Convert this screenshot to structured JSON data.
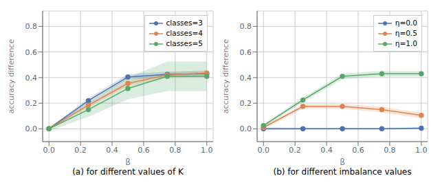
{
  "chart_data": [
    {
      "type": "line",
      "title": "(a) for different values of K",
      "xlabel": "β",
      "ylabel": "accuracy difference",
      "x": [
        0.0,
        0.25,
        0.5,
        0.75,
        1.0
      ],
      "series": [
        {
          "name": "classes=3",
          "color": "#4C72B0",
          "values": [
            0.0,
            0.22,
            0.405,
            0.425,
            0.43
          ],
          "std": [
            0.008,
            0.018,
            0.022,
            0.022,
            0.022
          ]
        },
        {
          "name": "classes=4",
          "color": "#DD8452",
          "values": [
            0.0,
            0.185,
            0.355,
            0.42,
            0.435
          ],
          "std": [
            0.008,
            0.018,
            0.022,
            0.022,
            0.022
          ]
        },
        {
          "name": "classes=5",
          "color": "#55A868",
          "values": [
            0.0,
            0.15,
            0.315,
            0.41,
            0.41
          ],
          "std": [
            0.018,
            0.055,
            0.085,
            0.115,
            0.115
          ]
        }
      ],
      "xlim": [
        -0.04,
        1.04
      ],
      "xticks": [
        {
          "value": 0.0,
          "label": "0.0"
        },
        {
          "value": 0.2,
          "label": "0.2"
        },
        {
          "value": 0.4,
          "label": "0.4"
        },
        {
          "value": 0.6,
          "label": "0.6"
        },
        {
          "value": 0.8,
          "label": "0.8"
        },
        {
          "value": 1.0,
          "label": "1.0"
        }
      ],
      "ylim": [
        -0.1,
        0.92
      ],
      "yticks": [
        {
          "value": 0.0,
          "label": "0.0"
        },
        {
          "value": 0.2,
          "label": "0.2"
        },
        {
          "value": 0.4,
          "label": "0.4"
        },
        {
          "value": 0.6,
          "label": "0.6"
        },
        {
          "value": 0.8,
          "label": "0.8"
        }
      ],
      "grid": true,
      "legend": "upper right",
      "marker": "circle"
    },
    {
      "type": "line",
      "title": "(b) for different imbalance values",
      "xlabel": "β",
      "ylabel": "accuracy difference",
      "x": [
        0.0,
        0.25,
        0.5,
        0.75,
        1.0
      ],
      "series": [
        {
          "name": "η=0.0",
          "color": "#4C72B0",
          "values": [
            0.0,
            0.0,
            0.0,
            0.0,
            0.005
          ],
          "std": [
            0.012,
            0.008,
            0.008,
            0.008,
            0.008
          ]
        },
        {
          "name": "η=0.5",
          "color": "#DD8452",
          "values": [
            0.01,
            0.175,
            0.175,
            0.15,
            0.105
          ],
          "std": [
            0.012,
            0.018,
            0.018,
            0.022,
            0.022
          ]
        },
        {
          "name": "η=1.0",
          "color": "#55A868",
          "values": [
            0.025,
            0.225,
            0.41,
            0.43,
            0.43
          ],
          "std": [
            0.012,
            0.018,
            0.022,
            0.022,
            0.022
          ]
        }
      ],
      "xlim": [
        -0.04,
        1.04
      ],
      "xticks": [
        {
          "value": 0.0,
          "label": "0.0"
        },
        {
          "value": 0.2,
          "label": "0.2"
        },
        {
          "value": 0.4,
          "label": "0.4"
        },
        {
          "value": 0.6,
          "label": "0.6"
        },
        {
          "value": 0.8,
          "label": "0.8"
        },
        {
          "value": 1.0,
          "label": "1.0"
        }
      ],
      "ylim": [
        -0.1,
        0.92
      ],
      "yticks": [
        {
          "value": 0.0,
          "label": "0.0"
        },
        {
          "value": 0.2,
          "label": "0.2"
        },
        {
          "value": 0.4,
          "label": "0.4"
        },
        {
          "value": 0.6,
          "label": "0.6"
        },
        {
          "value": 0.8,
          "label": "0.8"
        }
      ],
      "grid": true,
      "legend": "upper right",
      "marker": "circle"
    }
  ]
}
